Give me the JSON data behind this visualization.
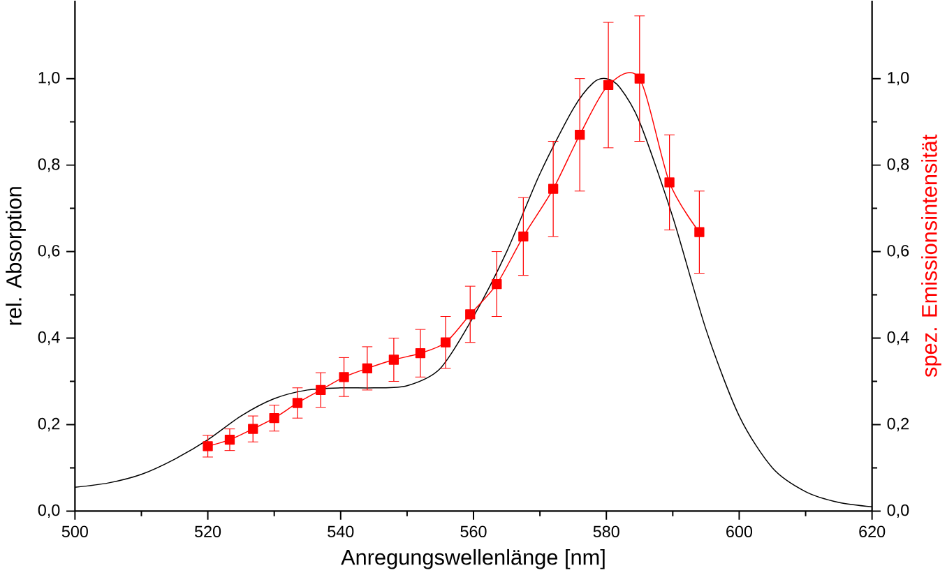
{
  "chart_data": {
    "type": "line",
    "xlabel": "Anregungswellenlänge [nm]",
    "ylabel": "rel. Absorption",
    "y2label": "spez. Emissionsintensität",
    "xlim": [
      500,
      620
    ],
    "xticks": [
      500,
      520,
      540,
      560,
      580,
      600,
      620
    ],
    "ylim": [
      0,
      1.18
    ],
    "yticks": [
      {
        "value": 0,
        "label": "0,0"
      },
      {
        "value": 0.2,
        "label": "0,2"
      },
      {
        "value": 0.4,
        "label": "0,4"
      },
      {
        "value": 0.6,
        "label": "0,6"
      },
      {
        "value": 0.8,
        "label": "0,8"
      },
      {
        "value": 1.0,
        "label": "1,0"
      }
    ],
    "y2lim": [
      0,
      1.18
    ],
    "y2ticks": [
      {
        "value": 0,
        "label": "0,0"
      },
      {
        "value": 0.2,
        "label": "0,2"
      },
      {
        "value": 0.4,
        "label": "0,4"
      },
      {
        "value": 0.6,
        "label": "0,6"
      },
      {
        "value": 0.8,
        "label": "0,8"
      },
      {
        "value": 1.0,
        "label": "1,0"
      }
    ],
    "series": [
      {
        "color": "#000000",
        "marker": "none",
        "line_style": "solid",
        "x": [
          500,
          505,
          510,
          515,
          520,
          525,
          530,
          535,
          540,
          545,
          550,
          555,
          560,
          565,
          570,
          575,
          578,
          580,
          582,
          585,
          590,
          595,
          600,
          605,
          610,
          615,
          620
        ],
        "values": [
          0.055,
          0.065,
          0.085,
          0.12,
          0.165,
          0.22,
          0.26,
          0.28,
          0.285,
          0.285,
          0.29,
          0.33,
          0.45,
          0.6,
          0.78,
          0.93,
          0.99,
          1.0,
          0.98,
          0.9,
          0.68,
          0.42,
          0.22,
          0.1,
          0.045,
          0.02,
          0.01
        ]
      },
      {
        "axis": "y2",
        "color": "#ff0000",
        "marker": "square",
        "line_style": "solid",
        "x": [
          520,
          523.3,
          526.8,
          530,
          533.5,
          537,
          540.5,
          544,
          548,
          552,
          555.8,
          559.5,
          563.5,
          567.5,
          572,
          576,
          580.3,
          585,
          589.5,
          594
        ],
        "values": [
          0.15,
          0.165,
          0.19,
          0.215,
          0.25,
          0.28,
          0.31,
          0.33,
          0.35,
          0.365,
          0.39,
          0.455,
          0.525,
          0.635,
          0.745,
          0.87,
          0.985,
          1.0,
          0.76,
          0.645
        ],
        "errors": [
          0.025,
          0.025,
          0.03,
          0.03,
          0.035,
          0.04,
          0.045,
          0.05,
          0.05,
          0.055,
          0.06,
          0.065,
          0.075,
          0.09,
          0.11,
          0.13,
          0.145,
          0.145,
          0.11,
          0.095
        ]
      }
    ]
  }
}
